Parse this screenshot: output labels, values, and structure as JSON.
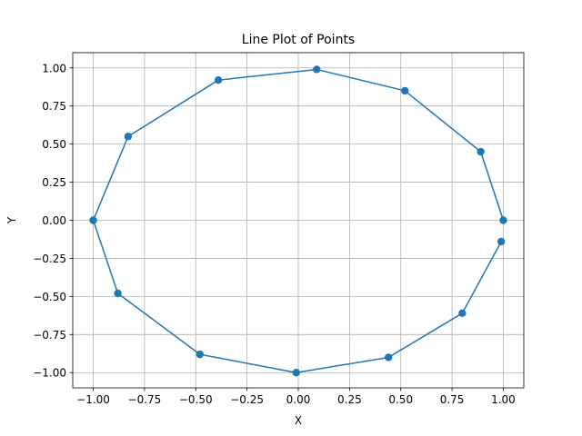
{
  "chart_data": {
    "type": "line",
    "title": "Line Plot of Points",
    "xlabel": "X",
    "ylabel": "Y",
    "xlim": [
      -1.1,
      1.1
    ],
    "ylim": [
      -1.1,
      1.1
    ],
    "xticks": [
      -1.0,
      -0.75,
      -0.5,
      -0.25,
      0.0,
      0.25,
      0.5,
      0.75,
      1.0
    ],
    "yticks": [
      -1.0,
      -0.75,
      -0.5,
      -0.25,
      0.0,
      0.25,
      0.5,
      0.75,
      1.0
    ],
    "xtick_labels": [
      "−1.00",
      "−0.75",
      "−0.50",
      "−0.25",
      "0.00",
      "0.25",
      "0.50",
      "0.75",
      "1.00"
    ],
    "ytick_labels": [
      "−1.00",
      "−0.75",
      "−0.50",
      "−0.25",
      "0.00",
      "0.25",
      "0.50",
      "0.75",
      "1.00"
    ],
    "grid": true,
    "series": [
      {
        "color": "#1f77b4",
        "marker": "circle",
        "points": [
          {
            "x": 1.0,
            "y": 0.0
          },
          {
            "x": 0.89,
            "y": 0.45
          },
          {
            "x": 0.52,
            "y": 0.85
          },
          {
            "x": 0.09,
            "y": 0.99
          },
          {
            "x": -0.39,
            "y": 0.92
          },
          {
            "x": -0.83,
            "y": 0.55
          },
          {
            "x": -1.0,
            "y": 0.0
          },
          {
            "x": -0.88,
            "y": -0.48
          },
          {
            "x": -0.48,
            "y": -0.88
          },
          {
            "x": -0.01,
            "y": -1.0
          },
          {
            "x": 0.44,
            "y": -0.9
          },
          {
            "x": 0.8,
            "y": -0.61
          },
          {
            "x": 0.99,
            "y": -0.14
          }
        ]
      }
    ]
  }
}
